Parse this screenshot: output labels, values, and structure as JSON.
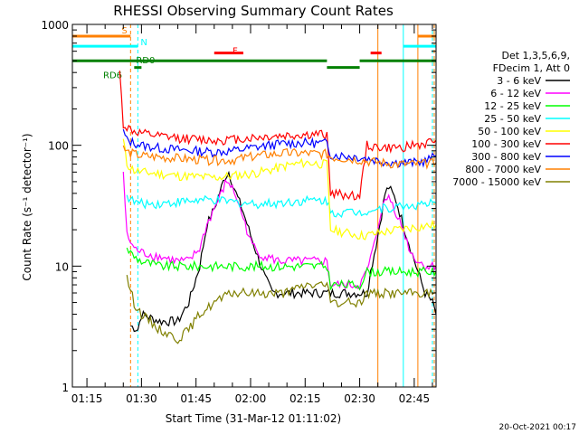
{
  "chart_data": {
    "type": "line",
    "title": "RHESSI Observing Summary Count Rates",
    "xlabel": "Start Time (31-Mar-12 01:11:02)",
    "ylabel": "Count Rate (s⁻¹ detector⁻¹)",
    "y_scale": "log",
    "ylim": [
      1,
      1000
    ],
    "xlim_minutes": [
      71,
      171
    ],
    "x_ticks": [
      "01:15",
      "01:30",
      "01:45",
      "02:00",
      "02:15",
      "02:30",
      "02:45"
    ],
    "y_ticks": [
      "1",
      "10",
      "100",
      "1000"
    ],
    "legend_header": [
      "Det 1,3,5,6,9,",
      "FDecim 1, Att 0"
    ],
    "series": [
      {
        "name": "3 - 6 keV",
        "color": "#000000",
        "points": [
          [
            87,
            3.2
          ],
          [
            89,
            3.0
          ],
          [
            90,
            4.0
          ],
          [
            95,
            3.5
          ],
          [
            100,
            3.5
          ],
          [
            103,
            5
          ],
          [
            106,
            10
          ],
          [
            108,
            22
          ],
          [
            110,
            30
          ],
          [
            112,
            45
          ],
          [
            113,
            55
          ],
          [
            114,
            60
          ],
          [
            116,
            40
          ],
          [
            118,
            28
          ],
          [
            120,
            18
          ],
          [
            122,
            12
          ],
          [
            124,
            8
          ],
          [
            126,
            6
          ],
          [
            130,
            6
          ],
          [
            134,
            6
          ],
          [
            138,
            6
          ],
          [
            140,
            6
          ],
          [
            142,
            6
          ],
          [
            144,
            6
          ],
          [
            145,
            6
          ],
          [
            150,
            6
          ],
          [
            152,
            6
          ],
          [
            153,
            9
          ],
          [
            155,
            18
          ],
          [
            157,
            40
          ],
          [
            158,
            45
          ],
          [
            160,
            35
          ],
          [
            162,
            22
          ],
          [
            164,
            14
          ],
          [
            166,
            9
          ],
          [
            168,
            6
          ],
          [
            170,
            5
          ],
          [
            171,
            4
          ]
        ]
      },
      {
        "name": "6 - 12 keV",
        "color": "#ff00ff",
        "points": [
          [
            85,
            60
          ],
          [
            86,
            18
          ],
          [
            88,
            14
          ],
          [
            90,
            13
          ],
          [
            95,
            12
          ],
          [
            100,
            11
          ],
          [
            103,
            11
          ],
          [
            106,
            14
          ],
          [
            108,
            22
          ],
          [
            110,
            30
          ],
          [
            112,
            40
          ],
          [
            113,
            48
          ],
          [
            114,
            50
          ],
          [
            116,
            38
          ],
          [
            118,
            25
          ],
          [
            120,
            16
          ],
          [
            122,
            13
          ],
          [
            124,
            12
          ],
          [
            128,
            11
          ],
          [
            132,
            11
          ],
          [
            136,
            11
          ],
          [
            140,
            11
          ],
          [
            141,
            11
          ],
          [
            142,
            7
          ],
          [
            146,
            7
          ],
          [
            150,
            7
          ],
          [
            152,
            9
          ],
          [
            154,
            15
          ],
          [
            156,
            30
          ],
          [
            158,
            38
          ],
          [
            160,
            28
          ],
          [
            162,
            20
          ],
          [
            164,
            13
          ],
          [
            166,
            11
          ],
          [
            168,
            10
          ],
          [
            171,
            10
          ]
        ]
      },
      {
        "name": "12 - 25 keV",
        "color": "#00ff00",
        "points": [
          [
            86,
            14
          ],
          [
            88,
            12
          ],
          [
            90,
            11
          ],
          [
            95,
            10
          ],
          [
            100,
            10
          ],
          [
            105,
            10
          ],
          [
            110,
            10
          ],
          [
            115,
            10
          ],
          [
            120,
            10
          ],
          [
            125,
            10
          ],
          [
            130,
            10
          ],
          [
            135,
            10
          ],
          [
            140,
            10
          ],
          [
            141,
            10
          ],
          [
            142,
            7
          ],
          [
            146,
            7
          ],
          [
            150,
            7
          ],
          [
            152,
            9
          ],
          [
            156,
            9
          ],
          [
            160,
            9
          ],
          [
            165,
            9
          ],
          [
            171,
            9
          ]
        ]
      },
      {
        "name": "25 - 50 keV",
        "color": "#00ffff",
        "points": [
          [
            86,
            38
          ],
          [
            88,
            34
          ],
          [
            90,
            33
          ],
          [
            95,
            33
          ],
          [
            100,
            34
          ],
          [
            105,
            35
          ],
          [
            110,
            35
          ],
          [
            115,
            34
          ],
          [
            120,
            33
          ],
          [
            125,
            33
          ],
          [
            130,
            34
          ],
          [
            135,
            35
          ],
          [
            140,
            35
          ],
          [
            141,
            35
          ],
          [
            142,
            28
          ],
          [
            146,
            28
          ],
          [
            150,
            28
          ],
          [
            152,
            29
          ],
          [
            156,
            30
          ],
          [
            160,
            31
          ],
          [
            165,
            32
          ],
          [
            171,
            33
          ]
        ]
      },
      {
        "name": "50 - 100 keV",
        "color": "#ffff00",
        "points": [
          [
            85,
            110
          ],
          [
            86,
            70
          ],
          [
            88,
            62
          ],
          [
            90,
            60
          ],
          [
            95,
            58
          ],
          [
            100,
            56
          ],
          [
            105,
            55
          ],
          [
            110,
            54
          ],
          [
            115,
            56
          ],
          [
            120,
            58
          ],
          [
            125,
            62
          ],
          [
            130,
            68
          ],
          [
            135,
            72
          ],
          [
            140,
            70
          ],
          [
            141,
            70
          ],
          [
            142,
            20
          ],
          [
            146,
            19
          ],
          [
            150,
            18
          ],
          [
            152,
            18
          ],
          [
            156,
            19
          ],
          [
            160,
            20
          ],
          [
            165,
            21
          ],
          [
            171,
            22
          ]
        ]
      },
      {
        "name": "100 - 300 keV",
        "color": "#ff0000",
        "points": [
          [
            84,
            400
          ],
          [
            85,
            150
          ],
          [
            86,
            140
          ],
          [
            88,
            130
          ],
          [
            90,
            125
          ],
          [
            95,
            118
          ],
          [
            100,
            115
          ],
          [
            105,
            112
          ],
          [
            110,
            110
          ],
          [
            115,
            112
          ],
          [
            120,
            115
          ],
          [
            125,
            118
          ],
          [
            130,
            120
          ],
          [
            135,
            122
          ],
          [
            140,
            123
          ],
          [
            141,
            123
          ],
          [
            142,
            40
          ],
          [
            146,
            39
          ],
          [
            150,
            38
          ],
          [
            152,
            100
          ],
          [
            156,
            95
          ],
          [
            160,
            95
          ],
          [
            165,
            100
          ],
          [
            168,
            102
          ],
          [
            171,
            110
          ]
        ]
      },
      {
        "name": "300 - 800 keV",
        "color": "#0000ff",
        "points": [
          [
            85,
            130
          ],
          [
            86,
            110
          ],
          [
            88,
            105
          ],
          [
            90,
            100
          ],
          [
            95,
            95
          ],
          [
            100,
            92
          ],
          [
            105,
            90
          ],
          [
            110,
            88
          ],
          [
            115,
            90
          ],
          [
            120,
            95
          ],
          [
            125,
            100
          ],
          [
            130,
            104
          ],
          [
            135,
            105
          ],
          [
            140,
            104
          ],
          [
            141,
            104
          ],
          [
            142,
            84
          ],
          [
            146,
            82
          ],
          [
            150,
            80
          ],
          [
            152,
            78
          ],
          [
            156,
            74
          ],
          [
            160,
            72
          ],
          [
            165,
            72
          ],
          [
            168,
            74
          ],
          [
            171,
            82
          ]
        ]
      },
      {
        "name": "800 - 7000 keV",
        "color": "#ff8000",
        "points": [
          [
            85,
            95
          ],
          [
            86,
            88
          ],
          [
            88,
            85
          ],
          [
            90,
            82
          ],
          [
            95,
            80
          ],
          [
            100,
            78
          ],
          [
            105,
            76
          ],
          [
            110,
            75
          ],
          [
            115,
            76
          ],
          [
            120,
            80
          ],
          [
            125,
            84
          ],
          [
            130,
            86
          ],
          [
            135,
            86
          ],
          [
            140,
            85
          ],
          [
            141,
            85
          ],
          [
            142,
            80
          ],
          [
            146,
            78
          ],
          [
            150,
            76
          ],
          [
            152,
            74
          ],
          [
            156,
            72
          ],
          [
            160,
            70
          ],
          [
            165,
            70
          ],
          [
            168,
            70
          ],
          [
            171,
            72
          ]
        ]
      },
      {
        "name": "7000 - 15000 keV",
        "color": "#808000",
        "points": [
          [
            86,
            8
          ],
          [
            88,
            5
          ],
          [
            90,
            4
          ],
          [
            95,
            3
          ],
          [
            100,
            2.5
          ],
          [
            103,
            3
          ],
          [
            106,
            4
          ],
          [
            110,
            5
          ],
          [
            115,
            6
          ],
          [
            120,
            6
          ],
          [
            125,
            6
          ],
          [
            130,
            6
          ],
          [
            135,
            7
          ],
          [
            140,
            7
          ],
          [
            141,
            7
          ],
          [
            142,
            5
          ],
          [
            146,
            5
          ],
          [
            150,
            5
          ],
          [
            152,
            6
          ],
          [
            156,
            6
          ],
          [
            160,
            6
          ],
          [
            165,
            6
          ],
          [
            171,
            6
          ]
        ]
      }
    ],
    "vertical_lines": [
      {
        "x": 87,
        "color": "#ff8000",
        "style": "dashed"
      },
      {
        "x": 89,
        "color": "#00ffff",
        "style": "dashed"
      },
      {
        "x": 162,
        "color": "#00ffff",
        "style": "solid"
      },
      {
        "x": 166,
        "color": "#ff8000",
        "style": "solid"
      },
      {
        "x": 170,
        "color": "#00ffff",
        "style": "dashed"
      },
      {
        "x": 170.5,
        "color": "#ff8000",
        "style": "dashed"
      },
      {
        "x": 155,
        "color": "#ff8000",
        "style": "solid"
      }
    ],
    "status_bars": [
      {
        "label": "S",
        "color": "#ff8000",
        "y_level": 800,
        "segments": [
          [
            71,
            87
          ],
          [
            166,
            171
          ]
        ]
      },
      {
        "label": "N",
        "color": "#00ffff",
        "y_level": 660,
        "segments": [
          [
            71,
            89
          ],
          [
            162,
            171
          ]
        ]
      },
      {
        "label": "F",
        "color": "#ff0000",
        "y_level": 580,
        "segments": [
          [
            110,
            118
          ],
          [
            153,
            156
          ]
        ]
      },
      {
        "label": "RD0",
        "color": "#008000",
        "y_level": 500,
        "segments": [
          [
            71,
            141
          ],
          [
            150,
            171
          ]
        ]
      },
      {
        "label": "RD6",
        "color": "#008000",
        "y_level": 440,
        "segments": [
          [
            88,
            90
          ],
          [
            141,
            150
          ]
        ]
      }
    ]
  },
  "footer": {
    "timestamp": "20-Oct-2021 00:17"
  }
}
